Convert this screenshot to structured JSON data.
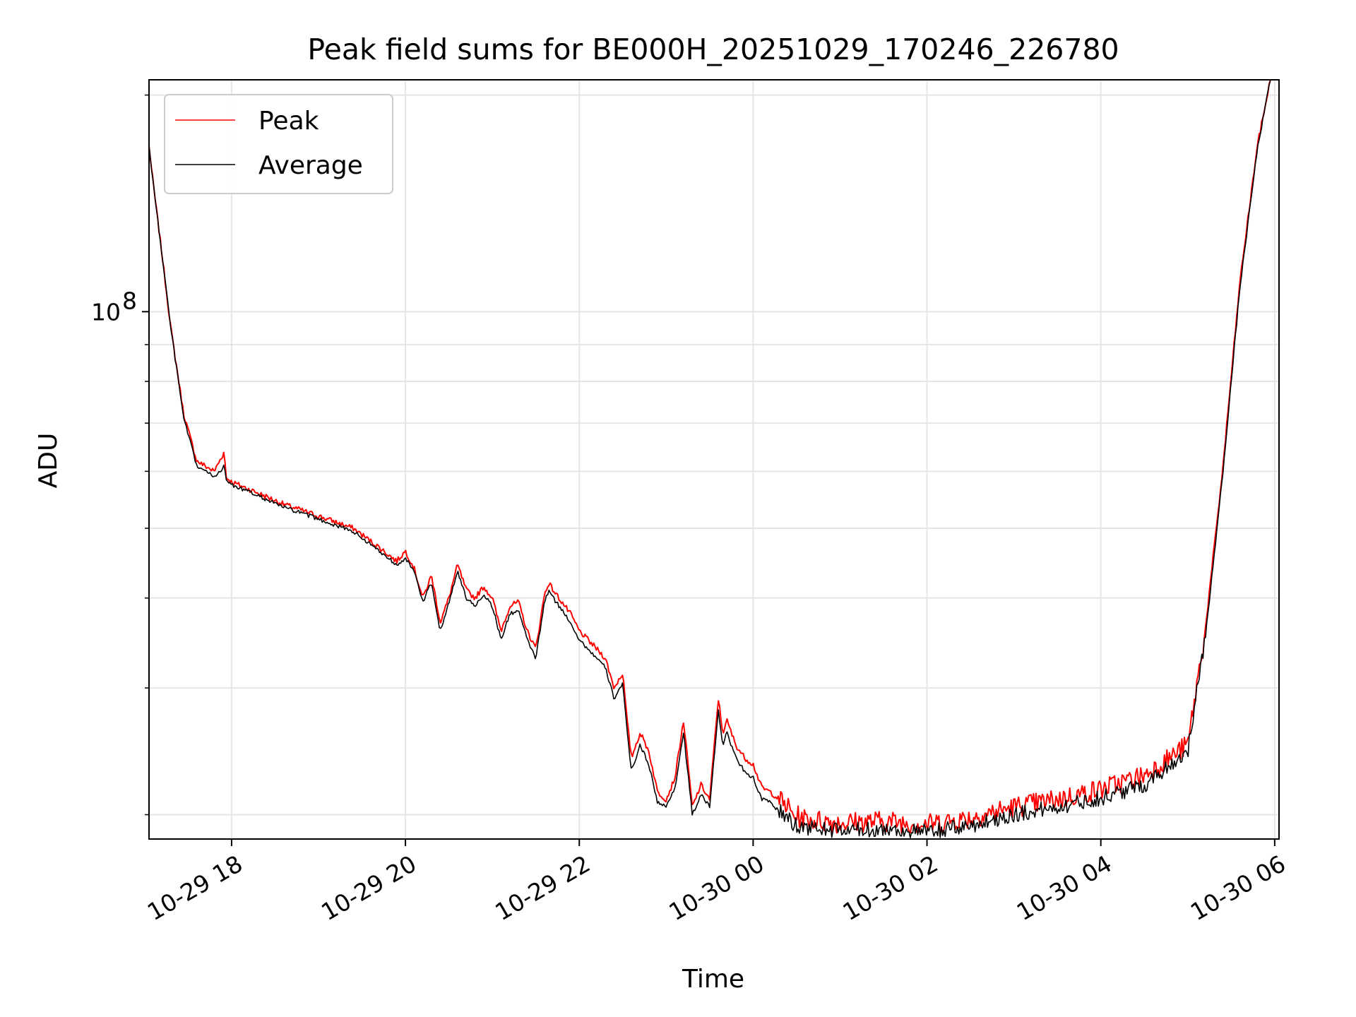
{
  "chart_data": {
    "type": "line",
    "title": "Peak field sums for BE000H_20251029_170246_226780",
    "xlabel": "Time",
    "ylabel": "ADU",
    "yscale": "log",
    "grid": true,
    "legend_position": "top-left",
    "x_range_hours": [
      17.05,
      30.05
    ],
    "y_range": [
      18500000,
      210000000
    ],
    "x_ticks": [
      {
        "hour": 18,
        "label": "10-29 18"
      },
      {
        "hour": 20,
        "label": "10-29 20"
      },
      {
        "hour": 22,
        "label": "10-29 22"
      },
      {
        "hour": 24,
        "label": "10-30 00"
      },
      {
        "hour": 26,
        "label": "10-30 02"
      },
      {
        "hour": 28,
        "label": "10-30 04"
      },
      {
        "hour": 30,
        "label": "10-30 06"
      }
    ],
    "y_major_ticks": [
      {
        "value": 100000000,
        "base": "10",
        "exp": "8"
      }
    ],
    "y_minor_ticks": [
      20000000,
      30000000,
      40000000,
      50000000,
      60000000,
      70000000,
      80000000,
      90000000,
      200000000
    ],
    "series": [
      {
        "name": "Peak",
        "color": "#ff0000",
        "hours": [
          17.05,
          17.1,
          17.2,
          17.3,
          17.45,
          17.6,
          17.8,
          17.92,
          17.93,
          18.0,
          18.3,
          18.6,
          19.0,
          19.4,
          19.7,
          19.9,
          20.0,
          20.1,
          20.2,
          20.3,
          20.4,
          20.5,
          20.6,
          20.7,
          20.8,
          20.9,
          21.0,
          21.1,
          21.2,
          21.3,
          21.4,
          21.5,
          21.6,
          21.65,
          21.7,
          21.8,
          21.9,
          22.0,
          22.2,
          22.3,
          22.4,
          22.5,
          22.55,
          22.6,
          22.7,
          22.8,
          22.9,
          23.0,
          23.1,
          23.2,
          23.3,
          23.4,
          23.5,
          23.6,
          23.65,
          23.7,
          23.8,
          23.9,
          24.0,
          24.1,
          24.2,
          24.3,
          24.4,
          24.45,
          24.6,
          25.0,
          25.5,
          26.0,
          26.5,
          27.0,
          27.5,
          28.0,
          28.5,
          29.0,
          29.2,
          29.4,
          29.6,
          29.8,
          29.95
        ],
        "values": [
          170000000,
          150000000,
          120000000,
          95000000,
          72000000,
          62000000,
          60000000,
          64000000,
          59000000,
          58000000,
          56000000,
          54000000,
          52000000,
          50000000,
          47000000,
          45000000,
          46500000,
          44000000,
          40000000,
          43000000,
          37000000,
          40000000,
          44500000,
          41000000,
          40000000,
          41500000,
          40000000,
          36000000,
          39000000,
          39500000,
          36000000,
          34000000,
          40500000,
          42000000,
          41000000,
          39500000,
          38000000,
          36000000,
          34000000,
          33000000,
          30000000,
          31500000,
          27000000,
          24000000,
          26000000,
          24500000,
          21500000,
          21000000,
          22500000,
          27000000,
          20500000,
          22000000,
          21000000,
          29000000,
          26000000,
          27000000,
          25000000,
          24000000,
          23500000,
          21800000,
          21500000,
          21000000,
          20500000,
          20000000,
          19700000,
          19500000,
          19600000,
          19400000,
          19800000,
          20500000,
          21000000,
          21700000,
          22700000,
          25000000,
          36000000,
          60000000,
          110000000,
          170000000,
          210000000
        ]
      },
      {
        "name": "Average",
        "color": "#000000",
        "hours": [
          17.05,
          17.1,
          17.2,
          17.3,
          17.45,
          17.6,
          17.8,
          17.92,
          17.93,
          18.0,
          18.3,
          18.6,
          19.0,
          19.4,
          19.7,
          19.9,
          20.0,
          20.1,
          20.2,
          20.3,
          20.4,
          20.5,
          20.6,
          20.7,
          20.8,
          20.9,
          21.0,
          21.1,
          21.2,
          21.3,
          21.4,
          21.5,
          21.6,
          21.65,
          21.7,
          21.8,
          21.9,
          22.0,
          22.2,
          22.3,
          22.4,
          22.5,
          22.55,
          22.6,
          22.7,
          22.8,
          22.9,
          23.0,
          23.1,
          23.2,
          23.3,
          23.4,
          23.5,
          23.6,
          23.65,
          23.7,
          23.8,
          23.9,
          24.0,
          24.1,
          24.2,
          24.3,
          24.4,
          24.45,
          24.6,
          25.0,
          25.5,
          26.0,
          26.5,
          27.0,
          27.5,
          28.0,
          28.5,
          29.0,
          29.2,
          29.4,
          29.6,
          29.8,
          29.95
        ],
        "values": [
          170000000,
          150000000,
          120000000,
          95000000,
          71000000,
          61000000,
          59000000,
          61000000,
          58500000,
          57500000,
          55500000,
          53500000,
          51500000,
          49500000,
          46500000,
          44500000,
          45500000,
          43500000,
          39500000,
          42000000,
          36000000,
          39500000,
          43500000,
          40000000,
          39000000,
          40500000,
          39000000,
          35000000,
          38000000,
          38500000,
          35000000,
          33000000,
          39500000,
          41000000,
          40000000,
          38500000,
          37000000,
          35000000,
          33000000,
          32000000,
          29000000,
          30500000,
          26000000,
          23000000,
          25000000,
          23500000,
          20800000,
          20500000,
          21800000,
          26000000,
          20000000,
          21300000,
          20500000,
          28000000,
          25000000,
          26000000,
          24000000,
          23000000,
          22500000,
          21000000,
          20800000,
          20200000,
          19800000,
          19400000,
          19200000,
          19000000,
          19100000,
          18900000,
          19300000,
          20000000,
          20500000,
          21100000,
          22000000,
          24500000,
          35000000,
          59000000,
          108000000,
          168000000,
          210000000
        ]
      }
    ]
  }
}
